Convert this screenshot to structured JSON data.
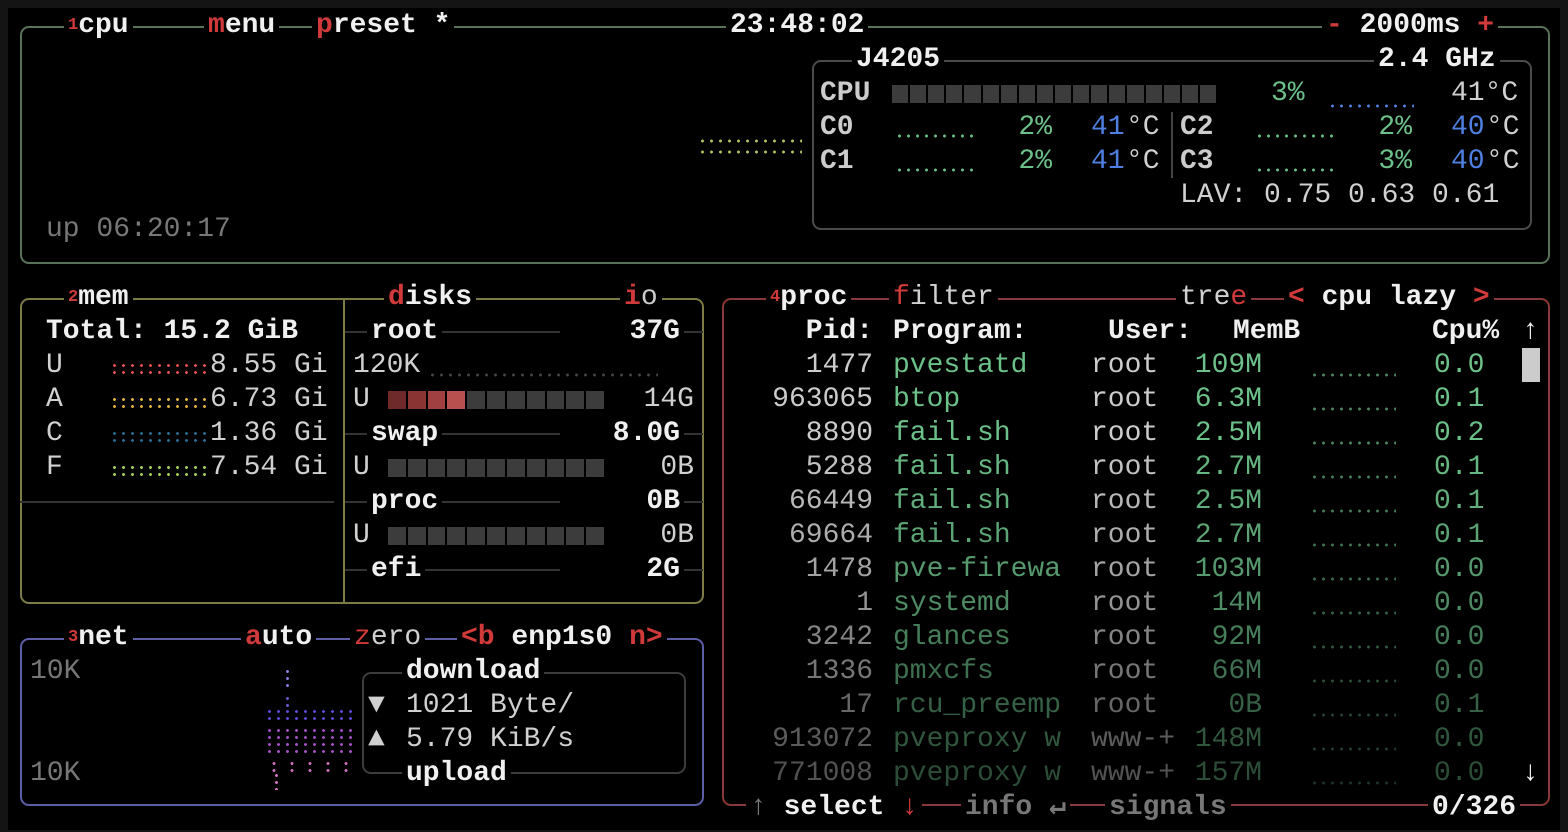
{
  "colors": {
    "cpu_border": "#58735a",
    "mem_border": "#7d7c45",
    "net_border": "#5e5ea8",
    "proc_border": "#8a3838",
    "hotkey": "#d03a3a",
    "green": "#6cc08a",
    "blue": "#4f7fe0"
  },
  "cpu": {
    "num": "1",
    "title": "cpu",
    "menu_hot": "m",
    "menu_rest": "enu",
    "preset_hot": "p",
    "preset_rest": "reset *",
    "clock": "23:48:02",
    "minus": "-",
    "interval": "2000ms",
    "plus": "+",
    "uptime": "up 06:20:17",
    "model": "J4205",
    "freq": "2.4 GHz",
    "total_label": "CPU",
    "total_pct": "3%",
    "total_pct_value": 3,
    "total_temp": "41°C",
    "cores": [
      {
        "label": "C0",
        "pct": "2%",
        "temp": "41",
        "unit": "°C"
      },
      {
        "label": "C1",
        "pct": "2%",
        "temp": "41",
        "unit": "°C"
      },
      {
        "label": "C2",
        "pct": "2%",
        "temp": "40",
        "unit": "°C"
      },
      {
        "label": "C3",
        "pct": "3%",
        "temp": "40",
        "unit": "°C"
      }
    ],
    "lav": "LAV: 0.75 0.63 0.61"
  },
  "mem": {
    "num": "2",
    "title": "mem",
    "total": "Total: 15.2 GiB",
    "rows": [
      {
        "label": "U",
        "value": "8.55 Gi",
        "color": "#e05050"
      },
      {
        "label": "A",
        "value": "6.73 Gi",
        "color": "#e0b040"
      },
      {
        "label": "C",
        "value": "1.36 Gi",
        "color": "#2a6a90"
      },
      {
        "label": "F",
        "value": "7.54 Gi",
        "color": "#a0d050"
      }
    ]
  },
  "disks": {
    "hot": "d",
    "rest": "isks",
    "io_hot": "i",
    "io_rest": "o",
    "items": [
      {
        "name": "root",
        "size": "37G",
        "io": "120K",
        "used_label": "U",
        "used": "14G",
        "used_segments": 4
      },
      {
        "name": "swap",
        "size": "8.0G",
        "used_label": "U",
        "used": "0B",
        "used_segments": 0
      },
      {
        "name": "proc",
        "size": "0B",
        "used_label": "U",
        "used": "0B",
        "used_segments": 0
      },
      {
        "name": "efi",
        "size": "2G"
      }
    ]
  },
  "net": {
    "num": "3",
    "title": "net",
    "auto_hot": "a",
    "auto_rest": "uto",
    "zero_hot": "z",
    "zero_rest": "ero",
    "prev": "<b",
    "iface": "enp1s0",
    "next": "n>",
    "scale_top": "10K",
    "scale_bottom": "10K",
    "download_label": "download",
    "download_icon": "▼",
    "download": "1021 Byte/",
    "upload_icon": "▲",
    "upload": "5.79 KiB/s",
    "upload_label": "upload"
  },
  "proc": {
    "num": "4",
    "title": "proc",
    "filter_hot": "f",
    "filter_rest": "ilter",
    "tree_rest": "tre",
    "tree_hot": "e",
    "sort_prev": "<",
    "sort": "cpu lazy",
    "sort_next": ">",
    "headers": {
      "pid": "Pid:",
      "program": "Program:",
      "user": "User:",
      "mem": "MemB",
      "cpu": "Cpu%"
    },
    "scroll_up": "↑",
    "scroll_down": "↓",
    "rows": [
      {
        "pid": "1477",
        "program": "pvestatd",
        "user": "root",
        "mem": "109M",
        "cpu": "0.0"
      },
      {
        "pid": "963065",
        "program": "btop",
        "user": "root",
        "mem": "6.3M",
        "cpu": "0.1"
      },
      {
        "pid": "8890",
        "program": "fail.sh",
        "user": "root",
        "mem": "2.5M",
        "cpu": "0.2"
      },
      {
        "pid": "5288",
        "program": "fail.sh",
        "user": "root",
        "mem": "2.7M",
        "cpu": "0.1"
      },
      {
        "pid": "66449",
        "program": "fail.sh",
        "user": "root",
        "mem": "2.5M",
        "cpu": "0.1"
      },
      {
        "pid": "69664",
        "program": "fail.sh",
        "user": "root",
        "mem": "2.7M",
        "cpu": "0.1"
      },
      {
        "pid": "1478",
        "program": "pve-firewa",
        "user": "root",
        "mem": "103M",
        "cpu": "0.0"
      },
      {
        "pid": "1",
        "program": "systemd",
        "user": "root",
        "mem": "14M",
        "cpu": "0.0"
      },
      {
        "pid": "3242",
        "program": "glances",
        "user": "root",
        "mem": "92M",
        "cpu": "0.0"
      },
      {
        "pid": "1336",
        "program": "pmxcfs",
        "user": "root",
        "mem": "66M",
        "cpu": "0.0"
      },
      {
        "pid": "17",
        "program": "rcu_preemp",
        "user": "root",
        "mem": "0B",
        "cpu": "0.1"
      },
      {
        "pid": "913072",
        "program": "pveproxy w",
        "user": "www-+",
        "mem": "148M",
        "cpu": "0.0"
      },
      {
        "pid": "771008",
        "program": "pveproxy w",
        "user": "www-+",
        "mem": "157M",
        "cpu": "0.0"
      }
    ],
    "select_up": "↑",
    "select": "select",
    "select_down": "↓",
    "info": "info",
    "info_icon": "↵",
    "signals": "signals",
    "count": "0/326"
  }
}
